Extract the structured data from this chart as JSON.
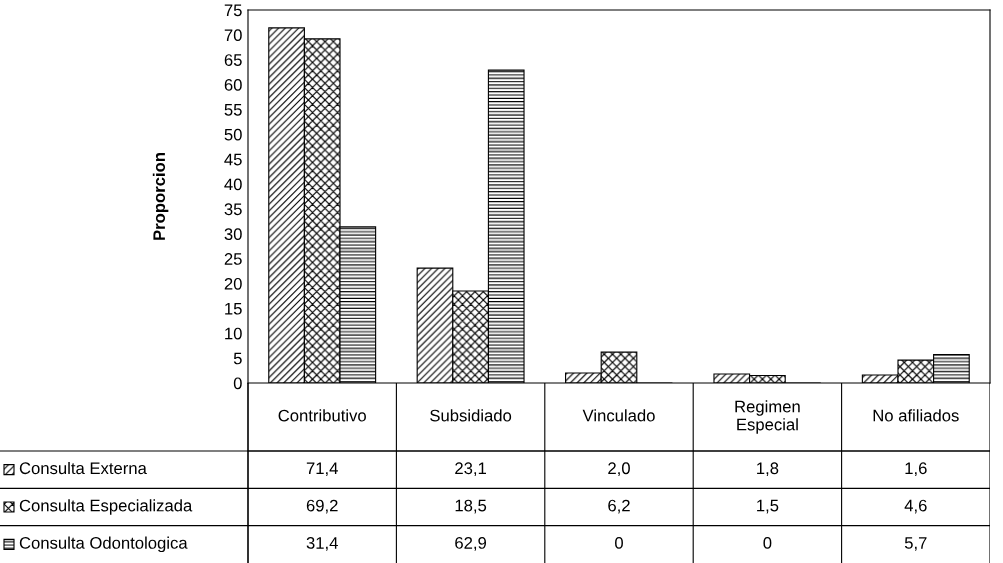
{
  "chart_data": {
    "type": "bar",
    "ylabel": "Proporcion",
    "categories": [
      "Contributivo",
      "Subsidiado",
      "Vinculado",
      "Regimen\nEspecial",
      "No afiliados"
    ],
    "ylim": [
      0,
      75
    ],
    "legend": "bottom left",
    "yticks": [
      0,
      5,
      10,
      15,
      20,
      25,
      30,
      35,
      40,
      45,
      50,
      55,
      60,
      65,
      70,
      75
    ],
    "series": [
      {
        "name": "Consulta Externa",
        "color": "#000000",
        "values": [
          71.4,
          23.1,
          2.0,
          1.8,
          1.6
        ],
        "value_labels": [
          "71,4",
          "23,1",
          "2,0",
          "1,8",
          "1,6"
        ]
      },
      {
        "name": "Consulta Especializada",
        "color": "#000000",
        "values": [
          69.2,
          18.5,
          6.2,
          1.5,
          4.6
        ],
        "value_labels": [
          "69,2",
          "18,5",
          "6,2",
          "1,5",
          "4,6"
        ]
      },
      {
        "name": "Consulta Odontologica",
        "color": "#000000",
        "values": [
          31.4,
          62.9,
          0,
          0,
          5.7
        ],
        "value_labels": [
          "31,4",
          "62,9",
          "0",
          "0",
          "5,7"
        ]
      }
    ]
  }
}
